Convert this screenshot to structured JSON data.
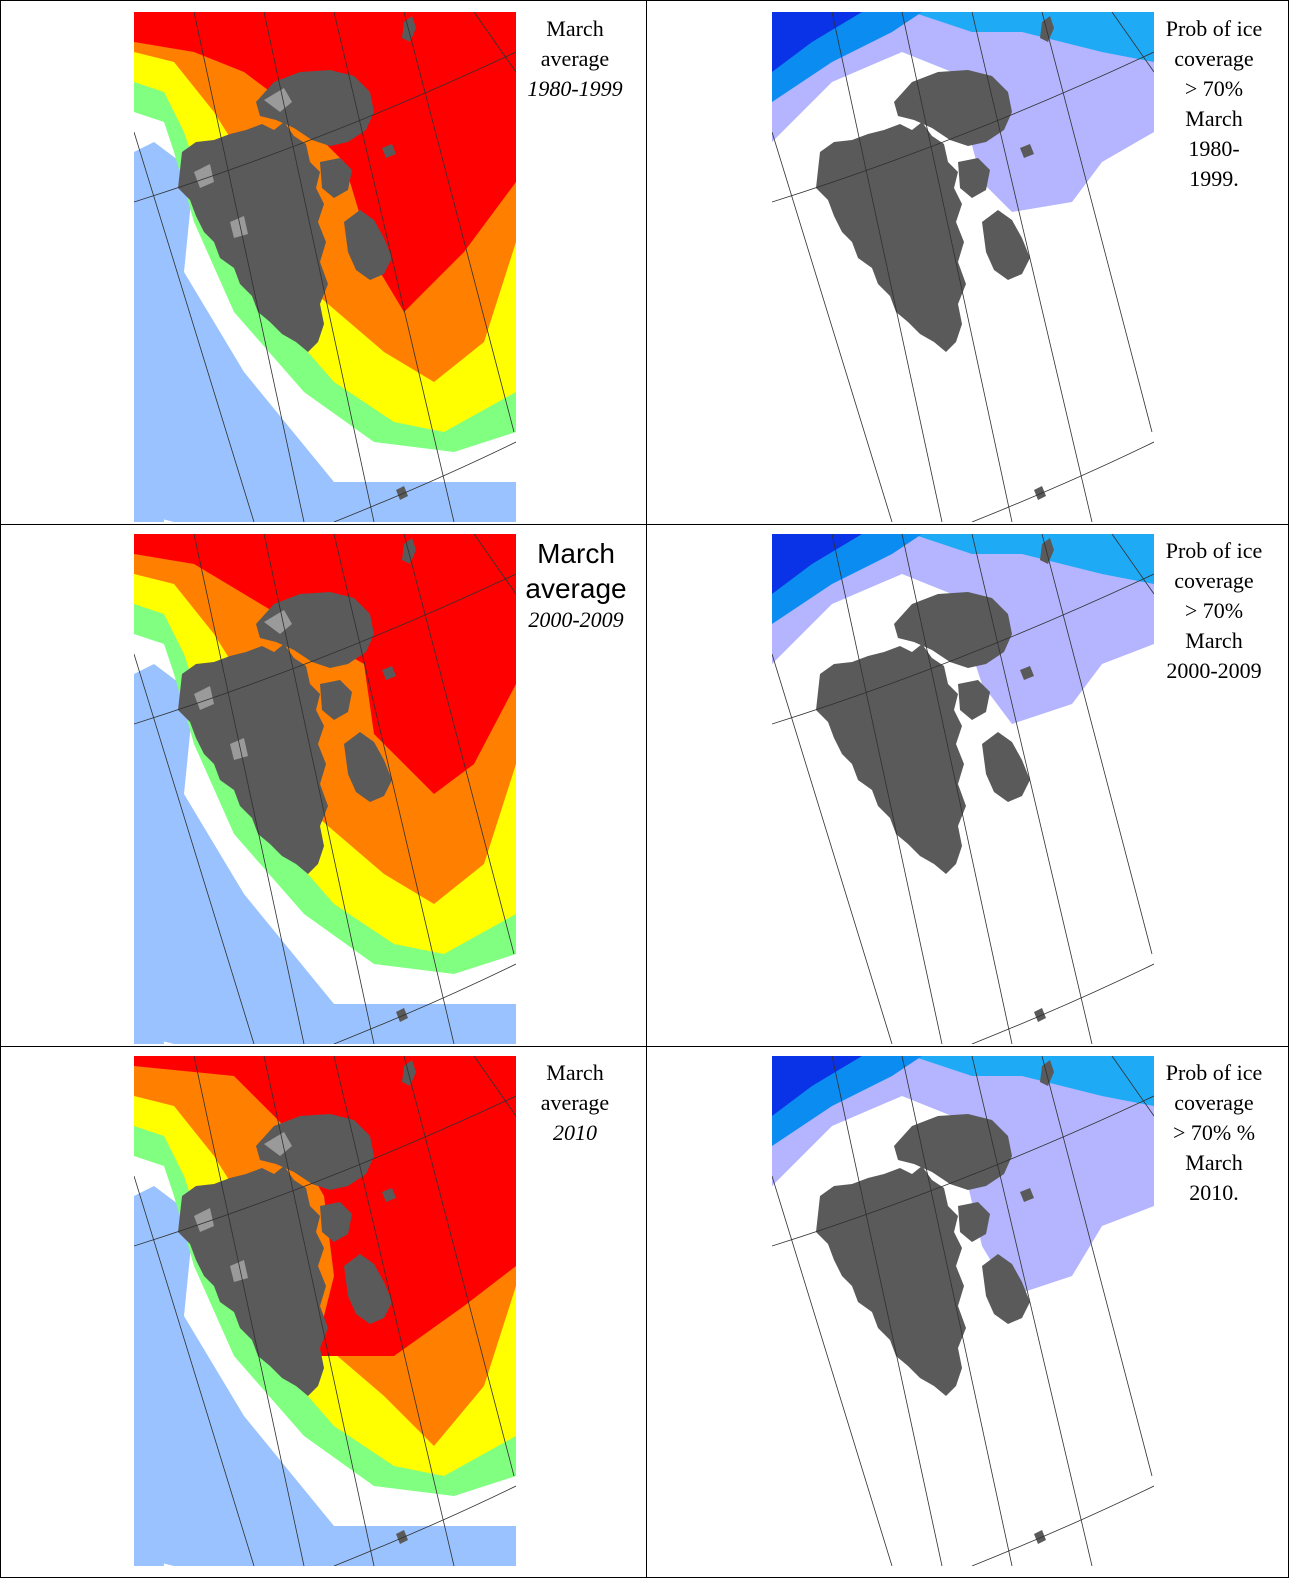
{
  "palette": {
    "land": "#5a5a5a",
    "glacier_light": "#9a9a9a",
    "conc_very_close": "#ff0000",
    "conc_close": "#ff7f00",
    "conc_open": "#ffff00",
    "conc_very_open": "#80ff80",
    "open_water": "#99c2ff",
    "prob_high": "#0a32e6",
    "prob_mid": "#0a8cf0",
    "prob_low2": "#1eaaf5",
    "prob_low": "#b4b4ff",
    "prob_none": "#ffffff"
  },
  "rows": [
    {
      "average_caption": {
        "line1": "March",
        "line2": "average",
        "period": "1980-1999"
      },
      "prob_caption": [
        "Prob of ice",
        "coverage",
        "> 70%",
        "March",
        "1980-",
        "1999."
      ]
    },
    {
      "average_caption": {
        "line1": "March",
        "line2": "average",
        "period": "2000-2009"
      },
      "prob_caption": [
        "Prob of ice",
        "coverage",
        "> 70%",
        "March",
        "2000-2009"
      ]
    },
    {
      "average_caption": {
        "line1": "March",
        "line2": "average",
        "period": "2010"
      },
      "prob_caption": [
        "Prob of ice",
        "coverage",
        "> 70% %",
        "March",
        "2010."
      ]
    }
  ]
}
